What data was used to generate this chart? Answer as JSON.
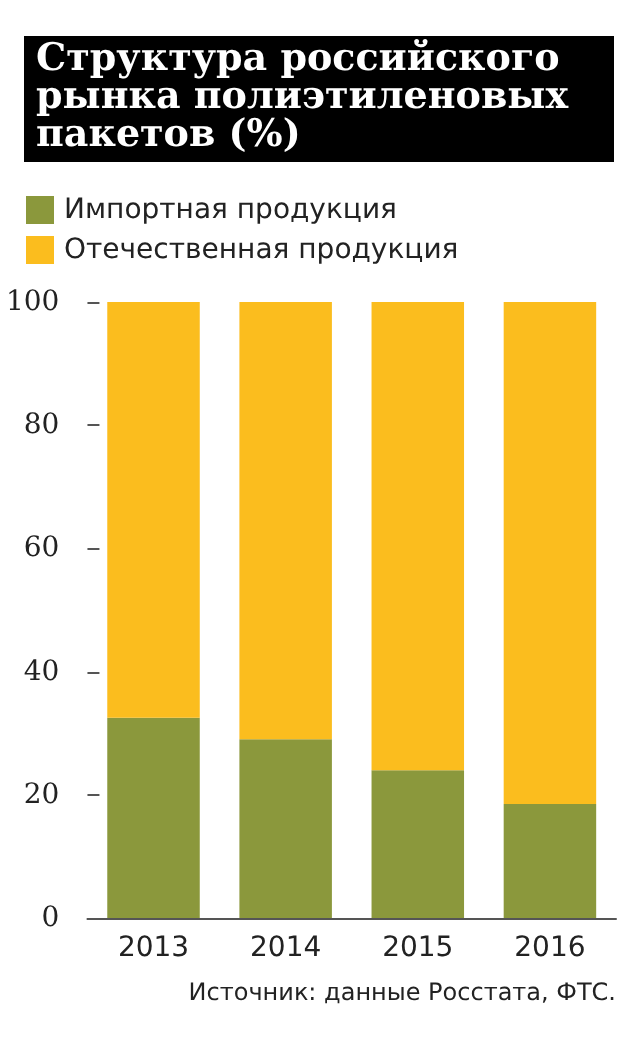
{
  "chart_data": {
    "type": "bar",
    "title": "Структура российского рынка полиэтиленовых пакетов (%)",
    "stacked": true,
    "categories": [
      "2013",
      "2014",
      "2015",
      "2016"
    ],
    "series": [
      {
        "name": "Импортная продукция",
        "color": "#8b983c",
        "values": [
          32.5,
          29,
          24,
          18.5
        ]
      },
      {
        "name": "Отечественная продукция",
        "color": "#fbbd1e",
        "values": [
          67.5,
          71,
          76,
          81.5
        ]
      }
    ],
    "ylim": [
      0,
      100
    ],
    "yticks": [
      0,
      20,
      40,
      60,
      80,
      100
    ],
    "grid": false,
    "legend": "top left",
    "annotations": [
      "Источник: данные Росстата, ФТС."
    ]
  }
}
